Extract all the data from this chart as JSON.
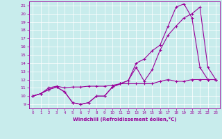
{
  "xlabel": "Windchill (Refroidissement éolien,°C)",
  "bg_color": "#c8ecec",
  "line_color": "#990099",
  "grid_color": "#ffffff",
  "xlim": [
    -0.5,
    23.5
  ],
  "ylim": [
    8.5,
    21.5
  ],
  "xticks": [
    0,
    1,
    2,
    3,
    4,
    5,
    6,
    7,
    8,
    9,
    10,
    11,
    12,
    13,
    14,
    15,
    16,
    17,
    18,
    19,
    20,
    21,
    22,
    23
  ],
  "yticks": [
    9,
    10,
    11,
    12,
    13,
    14,
    15,
    16,
    17,
    18,
    19,
    20,
    21
  ],
  "line1_x": [
    0,
    1,
    2,
    3,
    4,
    5,
    6,
    7,
    8,
    9,
    10,
    11,
    12,
    13,
    14,
    15,
    16,
    17,
    18,
    19,
    20,
    21,
    22,
    23
  ],
  "line1_y": [
    10,
    10.3,
    10.8,
    11.1,
    10.5,
    9.2,
    9.0,
    9.2,
    10.0,
    10.0,
    11.1,
    11.5,
    11.9,
    13.5,
    11.8,
    13.2,
    15.6,
    17.4,
    18.5,
    19.5,
    20.0,
    20.8,
    13.5,
    12.0
  ],
  "line2_x": [
    0,
    1,
    2,
    3,
    4,
    5,
    6,
    7,
    8,
    9,
    10,
    11,
    12,
    13,
    14,
    15,
    16,
    17,
    18,
    19,
    20,
    21,
    22,
    23
  ],
  "line2_y": [
    10,
    10.3,
    10.8,
    11.1,
    10.5,
    9.2,
    9.0,
    9.2,
    10.0,
    10.0,
    11.1,
    11.5,
    11.9,
    14.0,
    14.5,
    15.5,
    16.2,
    18.5,
    20.8,
    21.2,
    19.5,
    13.5,
    12.0,
    12.0
  ],
  "line3_x": [
    0,
    1,
    2,
    3,
    4,
    5,
    6,
    7,
    8,
    9,
    10,
    11,
    12,
    13,
    14,
    15,
    16,
    17,
    18,
    19,
    20,
    21,
    22,
    23
  ],
  "line3_y": [
    10,
    10.3,
    11.0,
    11.2,
    11.0,
    11.1,
    11.1,
    11.2,
    11.2,
    11.2,
    11.3,
    11.5,
    11.5,
    11.5,
    11.5,
    11.5,
    11.8,
    12.0,
    11.8,
    11.8,
    12.0,
    12.0,
    12.0,
    12.0
  ]
}
